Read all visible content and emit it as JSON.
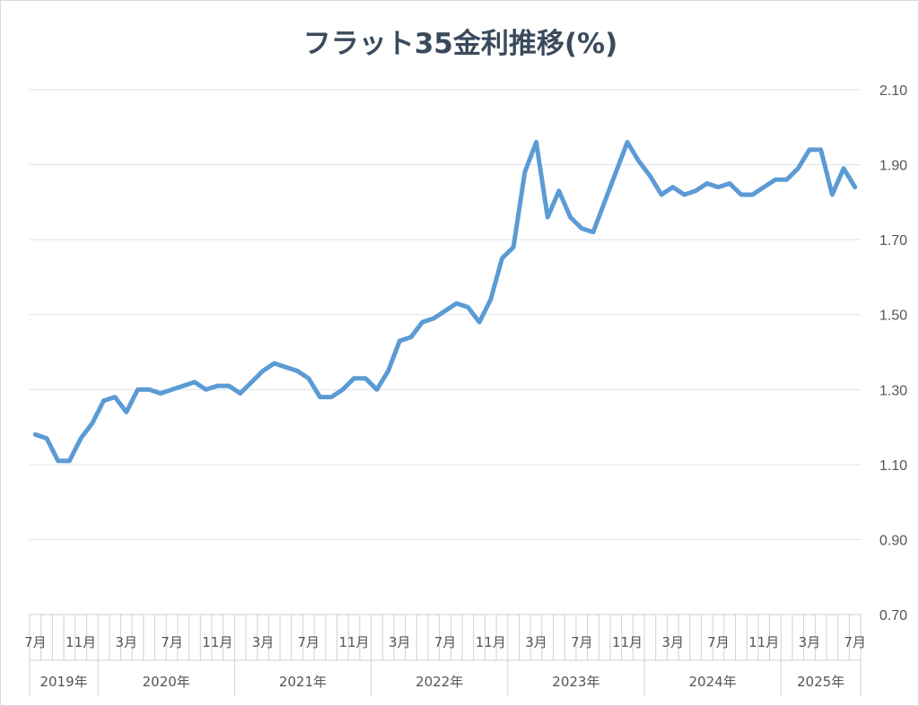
{
  "chart_data": {
    "type": "line",
    "title": "フラット35金利推移(%)",
    "xlabel": "",
    "ylabel": "",
    "ylim": [
      0.7,
      2.1
    ],
    "y_ticks": [
      "0.70",
      "0.90",
      "1.10",
      "1.30",
      "1.50",
      "1.70",
      "1.90",
      "2.10"
    ],
    "y_axis_side": "right",
    "grid": true,
    "line_color": "#5b9bd5",
    "month_labels": [
      "7月",
      "11月",
      "3月",
      "7月",
      "11月",
      "3月",
      "7月",
      "11月",
      "3月",
      "7月",
      "11月",
      "3月",
      "7月",
      "11月",
      "3月",
      "7月",
      "11月",
      "3月",
      "7月"
    ],
    "year_labels": [
      "2019年",
      "2020年",
      "2021年",
      "2022年",
      "2023年",
      "2024年",
      "2025年"
    ],
    "series": [
      {
        "x": [
          "2019-07",
          "2019-08",
          "2019-09",
          "2019-10",
          "2019-11",
          "2019-12",
          "2020-01",
          "2020-02",
          "2020-03",
          "2020-04",
          "2020-05",
          "2020-06",
          "2020-07",
          "2020-08",
          "2020-09",
          "2020-10",
          "2020-11",
          "2020-12",
          "2021-01",
          "2021-02",
          "2021-03",
          "2021-04",
          "2021-05",
          "2021-06",
          "2021-07",
          "2021-08",
          "2021-09",
          "2021-10",
          "2021-11",
          "2021-12",
          "2022-01",
          "2022-02",
          "2022-03",
          "2022-04",
          "2022-05",
          "2022-06",
          "2022-07",
          "2022-08",
          "2022-09",
          "2022-10",
          "2022-11",
          "2022-12",
          "2023-01",
          "2023-02",
          "2023-03",
          "2023-04",
          "2023-05",
          "2023-06",
          "2023-07",
          "2023-08",
          "2023-09",
          "2023-10",
          "2023-11",
          "2023-12",
          "2024-01",
          "2024-02",
          "2024-03",
          "2024-04",
          "2024-05",
          "2024-06",
          "2024-07",
          "2024-08",
          "2024-09",
          "2024-10",
          "2024-11",
          "2024-12",
          "2025-01",
          "2025-02",
          "2025-03",
          "2025-04",
          "2025-05",
          "2025-06",
          "2025-07"
        ],
        "values": [
          1.18,
          1.17,
          1.11,
          1.11,
          1.17,
          1.21,
          1.27,
          1.28,
          1.24,
          1.3,
          1.3,
          1.29,
          1.3,
          1.31,
          1.32,
          1.3,
          1.31,
          1.31,
          1.29,
          1.32,
          1.35,
          1.37,
          1.36,
          1.35,
          1.33,
          1.28,
          1.28,
          1.3,
          1.33,
          1.33,
          1.3,
          1.35,
          1.43,
          1.44,
          1.48,
          1.49,
          1.51,
          1.53,
          1.52,
          1.48,
          1.54,
          1.65,
          1.68,
          1.88,
          1.96,
          1.76,
          1.83,
          1.76,
          1.73,
          1.72,
          1.8,
          1.88,
          1.96,
          1.91,
          1.87,
          1.82,
          1.84,
          1.82,
          1.83,
          1.85,
          1.84,
          1.85,
          1.82,
          1.82,
          1.84,
          1.86,
          1.86,
          1.89,
          1.94,
          1.94,
          1.82,
          1.89,
          1.84
        ]
      }
    ]
  }
}
